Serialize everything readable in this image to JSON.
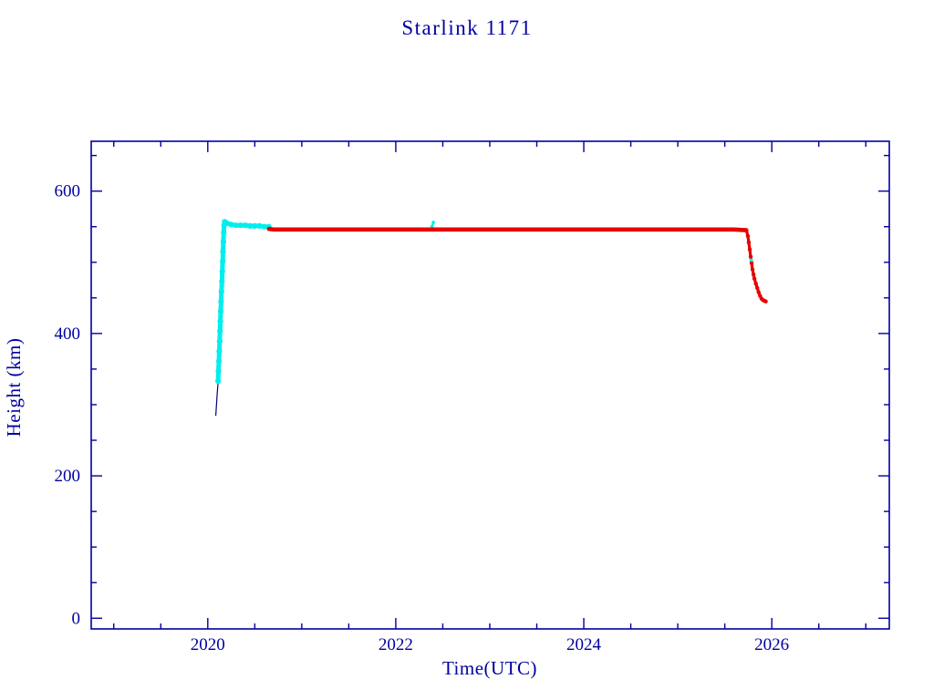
{
  "page": {
    "background": "#ffffff"
  },
  "chart_data": {
    "type": "scatter",
    "title": "Starlink 1171",
    "xlabel": "Time(UTC)",
    "ylabel": "Height (km)",
    "xlim": [
      2018.76,
      2027.25
    ],
    "ylim": [
      -15,
      670
    ],
    "xticks": [
      2020,
      2022,
      2024,
      2026
    ],
    "yticks": [
      0,
      200,
      400,
      600
    ],
    "x_minor_step": 0.5,
    "y_minor_step": 50,
    "grid": false,
    "legend": "none",
    "axis_color": "#0000a0",
    "text_color": "#0000a0",
    "series": [
      {
        "name": "launch-ascent-track",
        "color": "#000080",
        "width": 1.2,
        "markers": false,
        "points": [
          [
            2020.085,
            285
          ],
          [
            2020.09,
            295
          ],
          [
            2020.095,
            305
          ],
          [
            2020.1,
            315
          ],
          [
            2020.105,
            323
          ],
          [
            2020.11,
            331
          ]
        ]
      },
      {
        "name": "orbit-raise-cyan",
        "color": "#00eeee",
        "width": 5,
        "markers": true,
        "points": [
          [
            2020.11,
            333
          ],
          [
            2020.114,
            347
          ],
          [
            2020.118,
            361
          ],
          [
            2020.122,
            375
          ],
          [
            2020.126,
            389
          ],
          [
            2020.13,
            403
          ],
          [
            2020.134,
            417
          ],
          [
            2020.138,
            431
          ],
          [
            2020.142,
            445
          ],
          [
            2020.146,
            459
          ],
          [
            2020.15,
            473
          ],
          [
            2020.154,
            487
          ],
          [
            2020.158,
            501
          ],
          [
            2020.162,
            515
          ],
          [
            2020.166,
            529
          ],
          [
            2020.17,
            542
          ],
          [
            2020.174,
            552
          ],
          [
            2020.18,
            557
          ],
          [
            2020.2,
            555
          ],
          [
            2020.25,
            553
          ],
          [
            2020.3,
            552
          ],
          [
            2020.35,
            552
          ],
          [
            2020.4,
            552
          ],
          [
            2020.45,
            551
          ],
          [
            2020.5,
            551
          ],
          [
            2020.55,
            551
          ],
          [
            2020.6,
            550
          ],
          [
            2020.65,
            550
          ]
        ]
      },
      {
        "name": "tle-blip-cyan",
        "color": "#00eeee",
        "width": 2.5,
        "markers": true,
        "points": [
          [
            2022.385,
            550
          ],
          [
            2022.4,
            556
          ]
        ]
      },
      {
        "name": "station-keeping-red",
        "color": "#e60000",
        "width": 4.6,
        "markers": false,
        "points": [
          [
            2020.65,
            547
          ],
          [
            2020.7,
            546
          ],
          [
            2020.8,
            546
          ],
          [
            2020.9,
            546
          ],
          [
            2021.0,
            546
          ],
          [
            2021.2,
            546
          ],
          [
            2021.4,
            546
          ],
          [
            2021.6,
            546
          ],
          [
            2021.8,
            546
          ],
          [
            2022.0,
            546
          ],
          [
            2022.2,
            546
          ],
          [
            2022.4,
            546
          ],
          [
            2022.6,
            546
          ],
          [
            2022.8,
            546
          ],
          [
            2023.0,
            546
          ],
          [
            2023.2,
            546
          ],
          [
            2023.4,
            546
          ],
          [
            2023.6,
            546
          ],
          [
            2023.8,
            546
          ],
          [
            2024.0,
            546
          ],
          [
            2024.2,
            546
          ],
          [
            2024.4,
            546
          ],
          [
            2024.6,
            546
          ],
          [
            2024.8,
            546
          ],
          [
            2025.0,
            546
          ],
          [
            2025.2,
            546
          ],
          [
            2025.4,
            546
          ],
          [
            2025.6,
            546
          ],
          [
            2025.73,
            545
          ]
        ]
      },
      {
        "name": "deorbit-descent-red",
        "color": "#e60000",
        "width": 3.2,
        "markers": true,
        "points": [
          [
            2025.73,
            545
          ],
          [
            2025.745,
            537
          ],
          [
            2025.755,
            528
          ],
          [
            2025.765,
            518
          ],
          [
            2025.775,
            508
          ],
          [
            2025.785,
            499
          ],
          [
            2025.795,
            490
          ],
          [
            2025.805,
            483
          ],
          [
            2025.815,
            477
          ],
          [
            2025.83,
            470
          ],
          [
            2025.845,
            464
          ],
          [
            2025.86,
            458
          ],
          [
            2025.875,
            453
          ],
          [
            2025.89,
            449
          ],
          [
            2025.905,
            447
          ],
          [
            2025.92,
            446
          ],
          [
            2025.935,
            445
          ]
        ]
      },
      {
        "name": "deorbit-cyan-point",
        "color": "#00eeee",
        "width": 2.5,
        "markers": true,
        "points": [
          [
            2025.78,
            503
          ]
        ]
      }
    ]
  }
}
